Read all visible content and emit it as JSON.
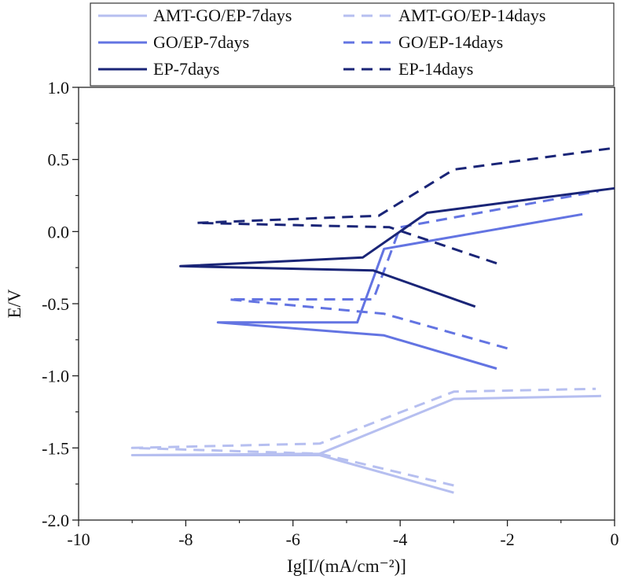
{
  "chart_data": {
    "type": "line",
    "xlabel": "Ig[I/(mA/cm⁻²)]",
    "ylabel": "E/V",
    "xlim": [
      -10,
      0
    ],
    "ylim": [
      -2.0,
      1.0
    ],
    "x_ticks": [
      -10,
      -8,
      -6,
      -4,
      -2,
      0
    ],
    "x_tick_labels": [
      "-10",
      "-8",
      "-6",
      "-4",
      "-2",
      "0"
    ],
    "y_ticks": [
      -2.0,
      -1.5,
      -1.0,
      -0.5,
      0.0,
      0.5,
      1.0
    ],
    "y_tick_labels": [
      "-2.0",
      "-1.5",
      "-1.0",
      "-0.5",
      "0.0",
      "0.5",
      "1.0"
    ],
    "grid": false,
    "legend_position": "top",
    "series": [
      {
        "name": "AMT-GO/EP-7days",
        "color": "#b6bff0",
        "dash": "solid",
        "x": [
          -3.0,
          -5.5,
          -9.0,
          -5.5,
          -3.0,
          -0.25
        ],
        "y": [
          -1.81,
          -1.55,
          -1.55,
          -1.54,
          -1.16,
          -1.14
        ]
      },
      {
        "name": "AMT-GO/EP-14days",
        "color": "#b6bff0",
        "dash": "dashed",
        "x": [
          -3.0,
          -5.5,
          -9.0,
          -5.5,
          -3.0,
          -0.35
        ],
        "y": [
          -1.76,
          -1.54,
          -1.5,
          -1.47,
          -1.11,
          -1.09
        ]
      },
      {
        "name": "GO/EP-7days",
        "color": "#6374e2",
        "dash": "solid",
        "x": [
          -2.2,
          -4.3,
          -7.4,
          -4.8,
          -4.3,
          -0.6
        ],
        "y": [
          -0.95,
          -0.72,
          -0.63,
          -0.63,
          -0.12,
          0.12
        ]
      },
      {
        "name": "GO/EP-14days",
        "color": "#6374e2",
        "dash": "dashed",
        "x": [
          -2.0,
          -4.3,
          -7.2,
          -4.5,
          -4.0,
          -0.3
        ],
        "y": [
          -0.81,
          -0.57,
          -0.47,
          -0.47,
          0.03,
          0.28
        ]
      },
      {
        "name": "EP-7days",
        "color": "#1a2577",
        "dash": "solid",
        "x": [
          -2.6,
          -4.5,
          -8.1,
          -4.7,
          -3.5,
          0.0
        ],
        "y": [
          -0.52,
          -0.27,
          -0.24,
          -0.18,
          0.13,
          0.3
        ]
      },
      {
        "name": "EP-14days",
        "color": "#1a2577",
        "dash": "dashed",
        "x": [
          -2.2,
          -4.2,
          -7.8,
          -4.4,
          -3.0,
          0.0
        ],
        "y": [
          -0.22,
          0.03,
          0.06,
          0.11,
          0.43,
          0.58
        ]
      }
    ]
  }
}
